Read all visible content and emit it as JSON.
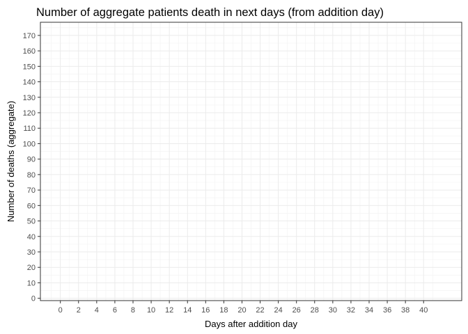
{
  "chart_data": {
    "type": "line",
    "title": "Number of aggregate patients death in next days (from addition day)",
    "xlabel": "Days after addition day",
    "ylabel": "Number of deaths (aggregate)",
    "xlim": [
      -2.2,
      44.2
    ],
    "ylim": [
      -1.5,
      178.5
    ],
    "x_ticks": [
      0,
      2,
      4,
      6,
      8,
      10,
      12,
      14,
      16,
      18,
      20,
      22,
      24,
      26,
      28,
      30,
      32,
      34,
      36,
      38,
      40
    ],
    "y_ticks": [
      0,
      10,
      20,
      30,
      40,
      50,
      60,
      70,
      80,
      90,
      100,
      110,
      120,
      130,
      140,
      150,
      160,
      170
    ],
    "grid": true,
    "series": []
  }
}
